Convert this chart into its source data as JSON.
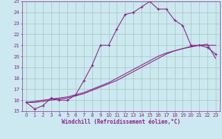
{
  "xlabel": "Windchill (Refroidissement éolien,°C)",
  "bg_color": "#cce8f0",
  "grid_color": "#a0c8b8",
  "line_color": "#882288",
  "xlim": [
    -0.5,
    23.5
  ],
  "ylim": [
    15,
    25
  ],
  "xticks": [
    0,
    1,
    2,
    3,
    4,
    5,
    6,
    7,
    8,
    9,
    10,
    11,
    12,
    13,
    14,
    15,
    16,
    17,
    18,
    19,
    20,
    21,
    22,
    23
  ],
  "yticks": [
    15,
    16,
    17,
    18,
    19,
    20,
    21,
    22,
    23,
    24,
    25
  ],
  "curve1_x": [
    0,
    1,
    2,
    3,
    4,
    5,
    6,
    7,
    8,
    9,
    10,
    11,
    12,
    13,
    14,
    15,
    16,
    17,
    18,
    19,
    20,
    21,
    22,
    23
  ],
  "curve1_y": [
    15.8,
    15.2,
    15.5,
    16.2,
    16.0,
    16.0,
    16.5,
    17.8,
    19.2,
    21.0,
    21.0,
    22.5,
    23.8,
    24.0,
    24.5,
    25.0,
    24.3,
    24.3,
    23.3,
    22.8,
    21.0,
    21.0,
    20.8,
    20.2
  ],
  "curve2_x": [
    0,
    1,
    2,
    3,
    4,
    5,
    6,
    7,
    8,
    9,
    10,
    11,
    12,
    13,
    14,
    15,
    16,
    17,
    18,
    19,
    20,
    21,
    22,
    23
  ],
  "curve2_y": [
    15.8,
    15.8,
    15.9,
    16.0,
    16.1,
    16.2,
    16.4,
    16.6,
    16.9,
    17.2,
    17.5,
    17.8,
    18.2,
    18.6,
    19.0,
    19.4,
    19.8,
    20.2,
    20.5,
    20.7,
    20.9,
    21.0,
    21.1,
    19.8
  ],
  "curve3_x": [
    0,
    1,
    2,
    3,
    4,
    5,
    6,
    7,
    8,
    9,
    10,
    11,
    12,
    13,
    14,
    15,
    16,
    17,
    18,
    19,
    20,
    21,
    22,
    23
  ],
  "curve3_y": [
    15.8,
    15.9,
    16.0,
    16.1,
    16.2,
    16.3,
    16.5,
    16.7,
    17.0,
    17.3,
    17.6,
    18.0,
    18.4,
    18.8,
    19.2,
    19.6,
    20.0,
    20.3,
    20.5,
    20.7,
    20.85,
    21.0,
    21.0,
    21.0
  ]
}
